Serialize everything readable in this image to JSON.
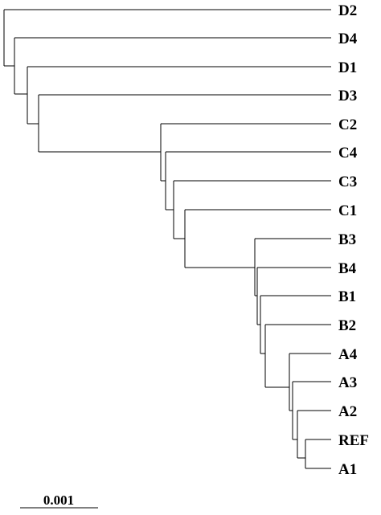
{
  "tree": {
    "leaves": [
      "D2",
      "D4",
      "D1",
      "D3",
      "C2",
      "C4",
      "C3",
      "C1",
      "B3",
      "B4",
      "B1",
      "B2",
      "A4",
      "A3",
      "A2",
      "REF",
      "A1"
    ],
    "scale_bar": {
      "label": "0.001",
      "length": 0.001
    }
  }
}
